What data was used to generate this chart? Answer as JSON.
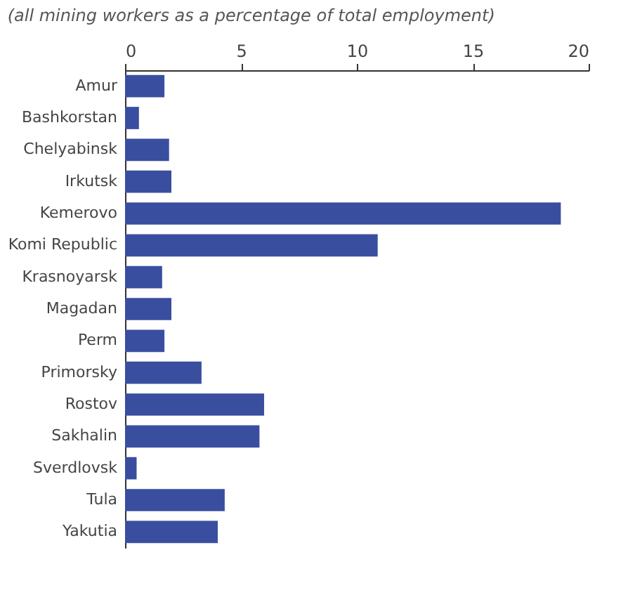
{
  "chart_data": {
    "type": "bar",
    "orientation": "horizontal",
    "title": "(all mining workers as a percentage of total employment)",
    "categories": [
      "Amur",
      "Bashkorstan",
      "Chelyabinsk",
      "Irkutsk",
      "Kemerovo",
      "Komi Republic",
      "Krasnoyarsk",
      "Magadan",
      "Perm",
      "Primorsky",
      "Rostov",
      "Sakhalin",
      "Sverdlovsk",
      "Tula",
      "Yakutia"
    ],
    "values": [
      1.7,
      0.6,
      1.9,
      2.0,
      18.8,
      10.9,
      1.6,
      2.0,
      1.7,
      3.3,
      6.0,
      5.8,
      0.5,
      4.3,
      4.0
    ],
    "color": "#3a4ea0",
    "xlim": [
      0,
      20
    ],
    "xticks": [
      0,
      5,
      10,
      15,
      20
    ],
    "grid": false
  }
}
